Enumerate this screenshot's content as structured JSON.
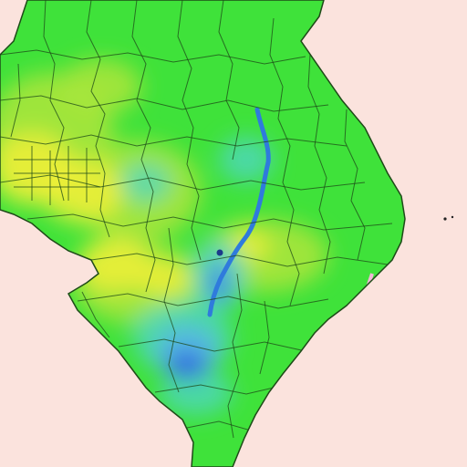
{
  "map": {
    "background_color": "#fbe3dd",
    "land_base_color": "#3fe23a",
    "boundary_color": "#1e4a18",
    "water_color": "#2f7bdc",
    "legend": [],
    "colors": {
      "green": "#3fe23a",
      "yellow_green": "#a8e63a",
      "yellow": "#f0f03a",
      "cyan": "#4fd6c8",
      "light_blue": "#58b6ea",
      "blue": "#2f64e0",
      "pink_shoreline": "#f3b7d8"
    }
  }
}
